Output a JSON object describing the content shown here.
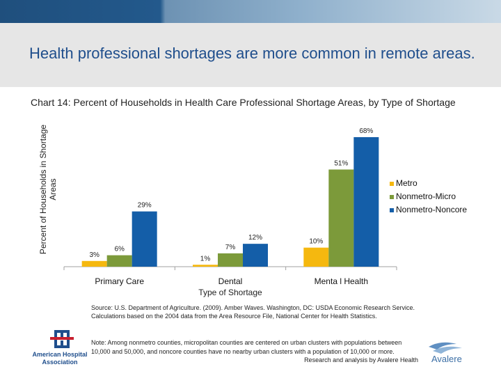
{
  "slide": {
    "title": "Health professional shortages are more common in remote areas."
  },
  "chart_data": {
    "type": "bar",
    "title": "Chart 14: Percent of Households in Health Care Professional Shortage Areas, by Type of Shortage",
    "xlabel": "Type of Shortage",
    "ylabel": "Percent of Households in Shortage Areas",
    "categories": [
      "Primary Care",
      "Dental",
      "Menta l Health"
    ],
    "series": [
      {
        "name": "Metro",
        "values": [
          3,
          1,
          10
        ],
        "labels": [
          "3%",
          "1%",
          "10%"
        ],
        "color": "#f5b80f"
      },
      {
        "name": "Nonmetro-Micro",
        "values": [
          6,
          7,
          51
        ],
        "labels": [
          "6%",
          "7%",
          "51%"
        ],
        "color": "#7c9a3a"
      },
      {
        "name": "Nonmetro-Noncore",
        "values": [
          29,
          12,
          68
        ],
        "labels": [
          "29%",
          "12%",
          "68%"
        ],
        "color": "#145ea8"
      }
    ],
    "ylim": [
      0,
      72
    ],
    "grid": false,
    "legend": "right"
  },
  "footer": {
    "source_line1": "Source: U.S. Department of Agriculture. (2009). Amber Waves. Washington, DC: USDA Economic Research Service.",
    "source_line2": "Calculations based on the 2004 data from the Area Resource File, National Center for Health Statistics.",
    "note": "Note: Among nonmetro counties, micropolitan counties are centered on urban clusters with populations between 10,000 and 50,000, and noncore counties have no nearby urban clusters with a population of 10,000 or more.",
    "credit": "Research and analysis by Avalere Health"
  },
  "logos": {
    "left": "American Hospital Association",
    "right": "Avalere"
  }
}
